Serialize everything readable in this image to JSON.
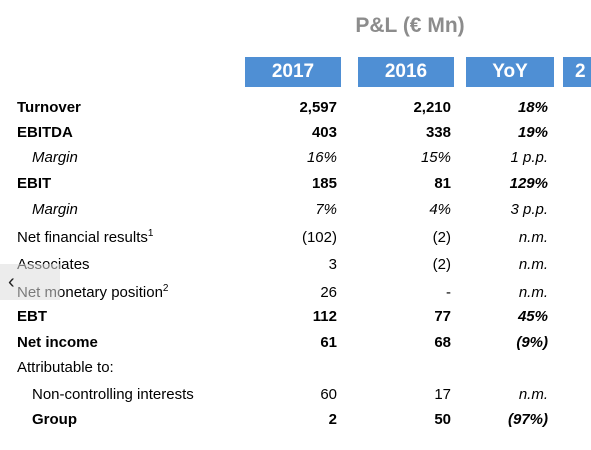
{
  "title": "P&L (€ Mn)",
  "headers": [
    "2017",
    "2016",
    "YoY",
    "2"
  ],
  "rows": [
    {
      "label": "Turnover",
      "sup": "",
      "v2017": "2,597",
      "v2016": "2,210",
      "yoy": "18%"
    },
    {
      "label": "EBITDA",
      "sup": "",
      "v2017": "403",
      "v2016": "338",
      "yoy": "19%"
    },
    {
      "label": "Margin",
      "sup": "",
      "v2017": "16%",
      "v2016": "15%",
      "yoy": "1 p.p."
    },
    {
      "label": "EBIT",
      "sup": "",
      "v2017": "185",
      "v2016": "81",
      "yoy": "129%"
    },
    {
      "label": "Margin",
      "sup": "",
      "v2017": "7%",
      "v2016": "4%",
      "yoy": "3 p.p."
    },
    {
      "label": "Net financial results",
      "sup": "1",
      "v2017": "(102)",
      "v2016": "(2)",
      "yoy": "n.m."
    },
    {
      "label": "Associates",
      "sup": "",
      "v2017": "3",
      "v2016": "(2)",
      "yoy": "n.m."
    },
    {
      "label": "Net monetary position",
      "sup": "2",
      "v2017": "26",
      "v2016": "-",
      "yoy": "n.m."
    },
    {
      "label": "EBT",
      "sup": "",
      "v2017": "112",
      "v2016": "77",
      "yoy": "45%"
    },
    {
      "label": "Net income",
      "sup": "",
      "v2017": "61",
      "v2016": "68",
      "yoy": "(9%)"
    },
    {
      "label": "Attributable to:",
      "sup": "",
      "v2017": "",
      "v2016": "",
      "yoy": ""
    },
    {
      "label": "Non-controlling interests",
      "sup": "",
      "v2017": "60",
      "v2016": "17",
      "yoy": "n.m."
    },
    {
      "label": "Group",
      "sup": "",
      "v2017": "2",
      "v2016": "50",
      "yoy": "(97%)"
    }
  ],
  "nav": {
    "prev_icon": "chevron-left-icon",
    "prev_glyph": "‹"
  },
  "colors": {
    "header_bg": "#4f8fd4",
    "title": "#8c8c8c"
  }
}
